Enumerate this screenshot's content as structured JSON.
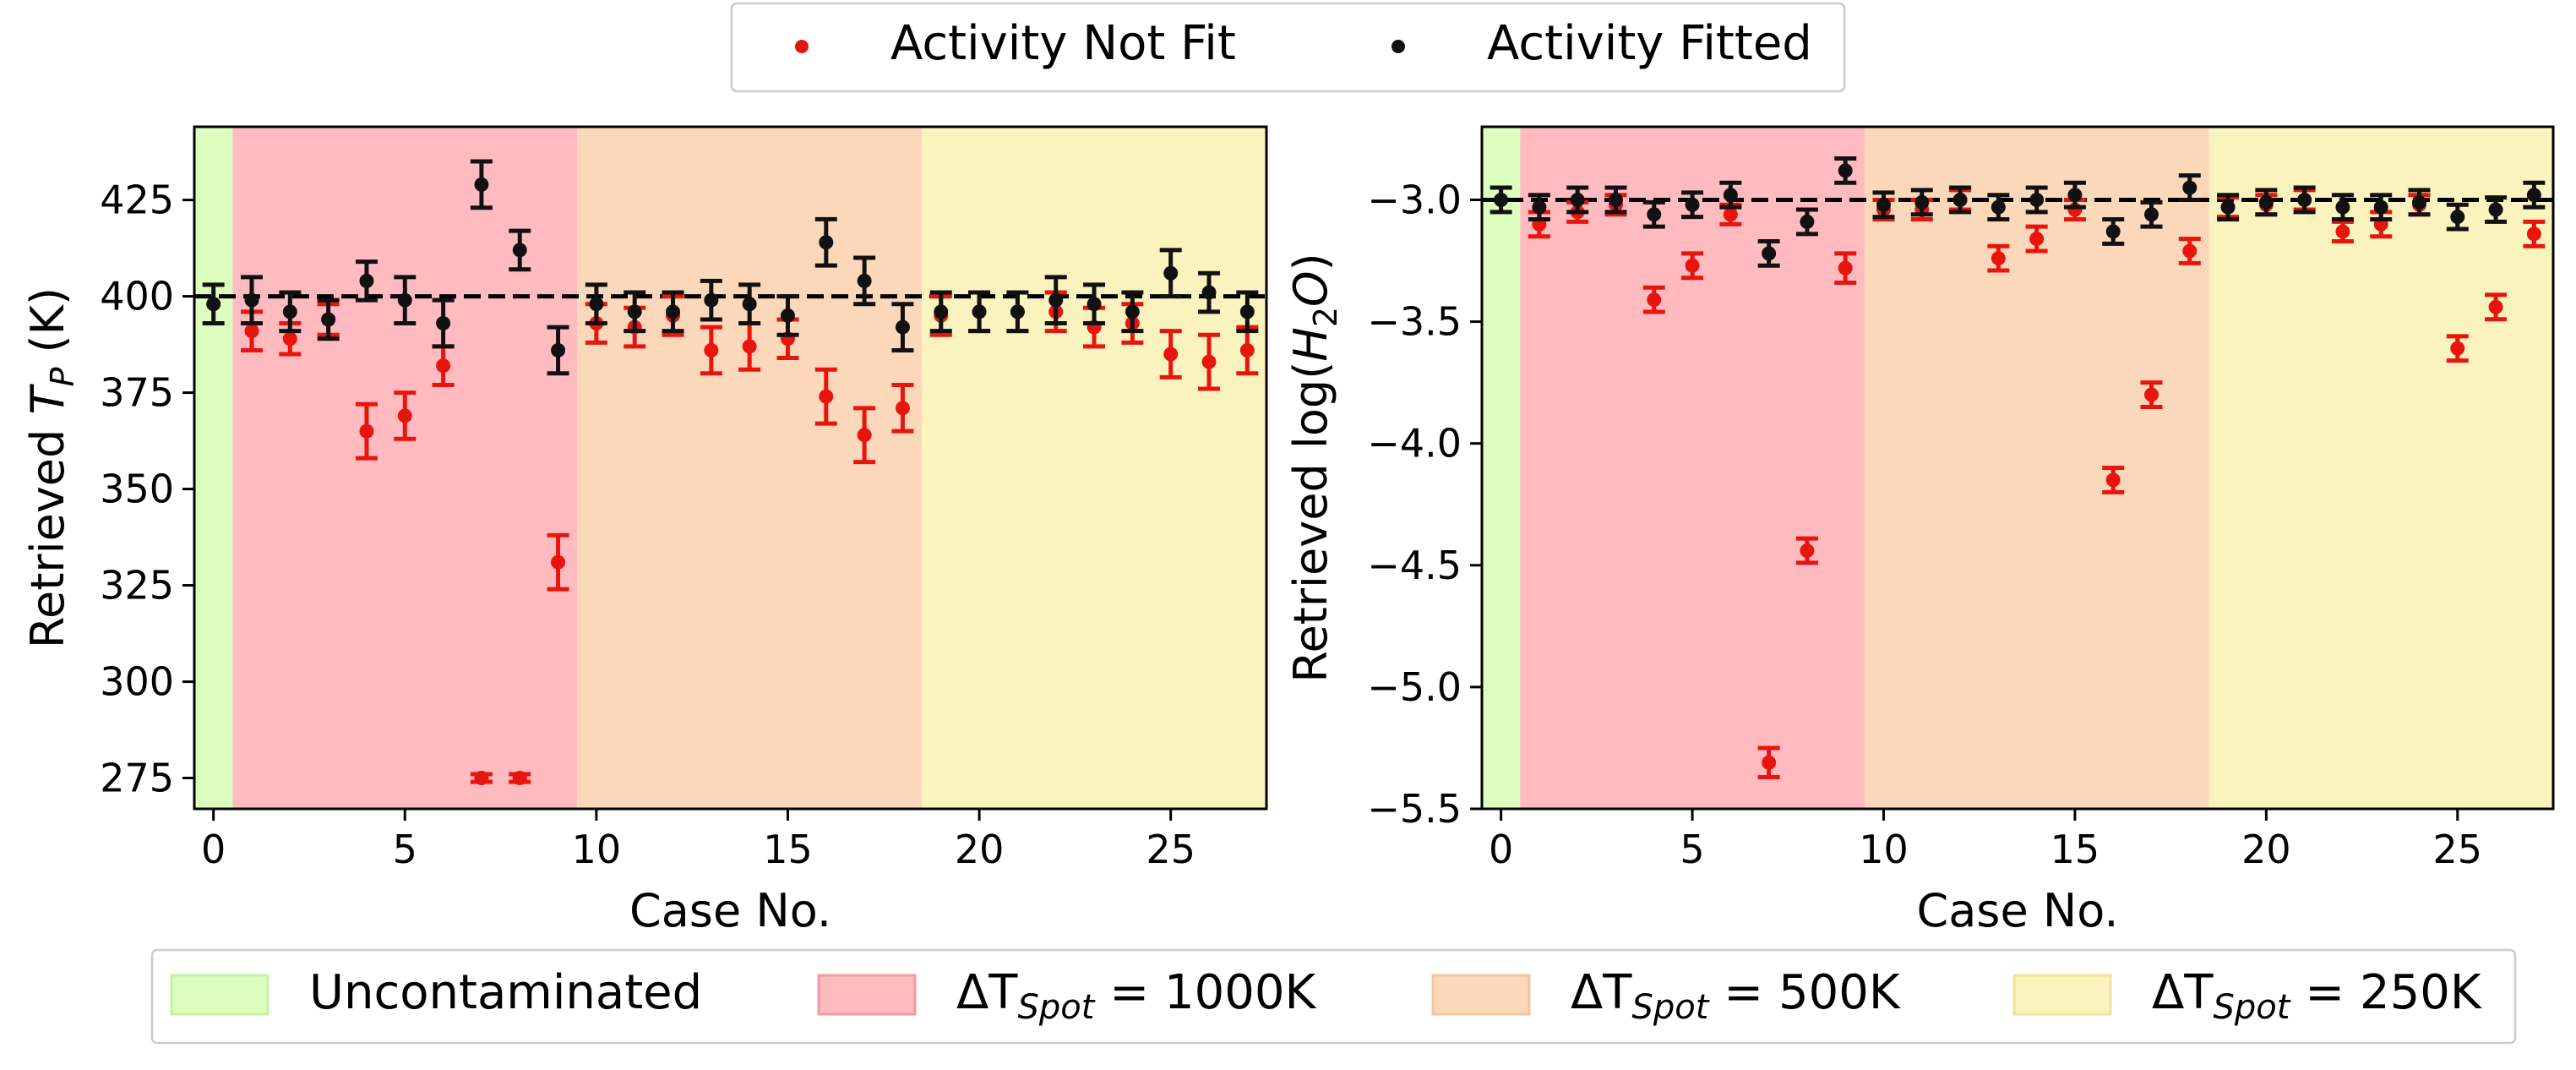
{
  "legend_top": {
    "items": [
      {
        "label": "Activity Not Fit",
        "color": "#e8150f"
      },
      {
        "label": "Activity Fitted",
        "color": "#111111"
      }
    ]
  },
  "legend_bottom": {
    "items": [
      {
        "label": "Uncontaminated",
        "sub": "",
        "color": "#dcffc0",
        "edge": "#c6f0a2"
      },
      {
        "label": "1000K",
        "sub": "Spot",
        "color": "#ffbbbf",
        "edge": "#f59aa0"
      },
      {
        "label": "500K",
        "sub": "Spot",
        "color": "#fcd8ba",
        "edge": "#f5c39d"
      },
      {
        "label": "250K",
        "sub": "Spot",
        "color": "#fbf3bd",
        "edge": "#f0e39b"
      }
    ]
  },
  "chart_data": [
    {
      "type": "scatter",
      "xlabel": "Case No.",
      "ylabel": "Retrieved T_P (K)",
      "xlim": [
        -0.5,
        27.5
      ],
      "ylim": [
        267,
        444
      ],
      "xticks": [
        0,
        5,
        10,
        15,
        20,
        25
      ],
      "yticks": [
        275,
        300,
        325,
        350,
        375,
        400,
        425
      ],
      "true_value": 400,
      "regions": [
        {
          "from": -0.5,
          "to": 0.5,
          "kind": "Uncontaminated"
        },
        {
          "from": 0.5,
          "to": 9.5,
          "kind": "1000K"
        },
        {
          "from": 9.5,
          "to": 18.5,
          "kind": "500K"
        },
        {
          "from": 18.5,
          "to": 27.5,
          "kind": "250K"
        }
      ],
      "series": [
        {
          "name": "Activity Not Fit",
          "color": "#e8150f",
          "x": [
            1,
            2,
            3,
            4,
            5,
            6,
            7,
            8,
            9,
            10,
            11,
            12,
            13,
            14,
            15,
            16,
            17,
            18,
            19,
            20,
            21,
            22,
            23,
            24,
            25,
            26,
            27
          ],
          "y": [
            391,
            389,
            394,
            365,
            369,
            382,
            275,
            275,
            331,
            393,
            392,
            395,
            386,
            387,
            389,
            374,
            364,
            371,
            395,
            396,
            396,
            396,
            392,
            393,
            385,
            383,
            386
          ],
          "err": [
            5,
            4,
            4,
            7,
            6,
            5,
            1,
            1,
            7,
            5,
            5,
            5,
            6,
            6,
            5,
            7,
            7,
            6,
            5,
            5,
            5,
            5,
            5,
            5,
            6,
            7,
            6
          ]
        },
        {
          "name": "Activity Fitted",
          "color": "#111111",
          "x": [
            0,
            1,
            2,
            3,
            4,
            5,
            6,
            7,
            8,
            9,
            10,
            11,
            12,
            13,
            14,
            15,
            16,
            17,
            18,
            19,
            20,
            21,
            22,
            23,
            24,
            25,
            26,
            27
          ],
          "y": [
            398,
            399,
            396,
            394,
            404,
            399,
            393,
            429,
            412,
            386,
            398,
            396,
            396,
            399,
            398,
            395,
            414,
            404,
            392,
            396,
            396,
            396,
            399,
            398,
            396,
            406,
            401,
            396
          ],
          "err": [
            5,
            6,
            5,
            5,
            5,
            6,
            6,
            6,
            5,
            6,
            5,
            5,
            5,
            5,
            5,
            5,
            6,
            6,
            6,
            5,
            5,
            5,
            6,
            5,
            5,
            6,
            5,
            5
          ]
        }
      ]
    },
    {
      "type": "scatter",
      "xlabel": "Case No.",
      "ylabel": "Retrieved log(H₂O)",
      "xlim": [
        -0.5,
        27.5
      ],
      "ylim": [
        -5.5,
        -2.7
      ],
      "xticks": [
        0,
        5,
        10,
        15,
        20,
        25
      ],
      "yticks": [
        -3.0,
        -3.5,
        -4.0,
        -4.5,
        -5.0,
        -5.5
      ],
      "ytick_labels": [
        "−3.0",
        "−3.5",
        "−4.0",
        "−4.5",
        "−5.0",
        "−5.5"
      ],
      "true_value": -3.0,
      "regions": [
        {
          "from": -0.5,
          "to": 0.5,
          "kind": "Uncontaminated"
        },
        {
          "from": 0.5,
          "to": 9.5,
          "kind": "1000K"
        },
        {
          "from": 9.5,
          "to": 18.5,
          "kind": "500K"
        },
        {
          "from": 18.5,
          "to": 27.5,
          "kind": "250K"
        }
      ],
      "series": [
        {
          "name": "Activity Not Fit",
          "color": "#e8150f",
          "x": [
            1,
            2,
            3,
            4,
            5,
            6,
            7,
            8,
            9,
            10,
            11,
            12,
            13,
            14,
            15,
            16,
            17,
            18,
            19,
            20,
            21,
            22,
            23,
            24,
            25,
            26,
            27
          ],
          "y": [
            -3.1,
            -3.05,
            -3.02,
            -3.41,
            -3.27,
            -3.06,
            -5.31,
            -4.44,
            -3.28,
            -3.04,
            -3.04,
            -3.0,
            -3.24,
            -3.16,
            -3.04,
            -4.15,
            -3.8,
            -3.21,
            -3.03,
            -3.02,
            -3.0,
            -3.13,
            -3.1,
            -3.02,
            -3.61,
            -3.44,
            -3.14
          ],
          "err": [
            0.05,
            0.04,
            0.04,
            0.05,
            0.05,
            0.04,
            0.06,
            0.05,
            0.06,
            0.04,
            0.04,
            0.04,
            0.05,
            0.05,
            0.04,
            0.05,
            0.05,
            0.05,
            0.04,
            0.04,
            0.04,
            0.04,
            0.05,
            0.04,
            0.05,
            0.05,
            0.05
          ]
        },
        {
          "name": "Activity Fitted",
          "color": "#111111",
          "x": [
            0,
            1,
            2,
            3,
            4,
            5,
            6,
            7,
            8,
            9,
            10,
            11,
            12,
            13,
            14,
            15,
            16,
            17,
            18,
            19,
            20,
            21,
            22,
            23,
            24,
            25,
            26,
            27
          ],
          "y": [
            -3.0,
            -3.03,
            -3.0,
            -3.0,
            -3.06,
            -3.02,
            -2.98,
            -3.22,
            -3.09,
            -2.88,
            -3.02,
            -3.01,
            -3.0,
            -3.03,
            -3.0,
            -2.98,
            -3.13,
            -3.06,
            -2.95,
            -3.03,
            -3.01,
            -3.0,
            -3.03,
            -3.03,
            -3.01,
            -3.07,
            -3.04,
            -2.98
          ],
          "err": [
            0.05,
            0.05,
            0.05,
            0.05,
            0.05,
            0.05,
            0.05,
            0.05,
            0.05,
            0.05,
            0.05,
            0.05,
            0.05,
            0.05,
            0.05,
            0.05,
            0.05,
            0.05,
            0.05,
            0.05,
            0.05,
            0.05,
            0.05,
            0.05,
            0.05,
            0.05,
            0.05,
            0.05
          ]
        }
      ]
    }
  ]
}
